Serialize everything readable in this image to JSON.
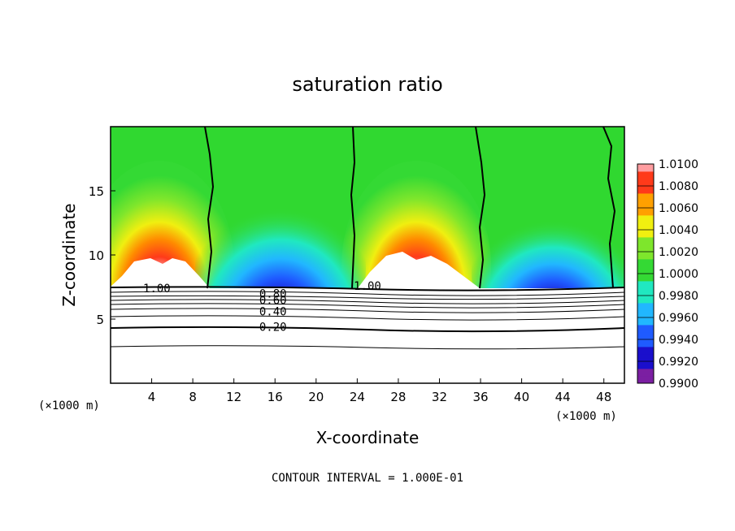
{
  "chart_data": {
    "type": "heatmap",
    "title": "saturation ratio",
    "xlabel": "X-coordinate",
    "ylabel": "Z-coordinate",
    "x_unit_left": "(×1000 m)",
    "x_unit_right": "(×1000 m)",
    "xlim": [
      0,
      50
    ],
    "ylim": [
      0,
      20
    ],
    "xticks": [
      4,
      8,
      12,
      16,
      20,
      24,
      28,
      32,
      36,
      40,
      44,
      48
    ],
    "yticks": [
      5,
      10,
      15
    ],
    "colorbar": {
      "levels": [
        "0.9900",
        "0.9920",
        "0.9940",
        "0.9960",
        "0.9980",
        "1.0000",
        "1.0020",
        "1.0040",
        "1.0060",
        "1.0080",
        "1.0100"
      ],
      "colors": [
        "#7b1fa2",
        "#1a0fcc",
        "#1f5bff",
        "#21b7ff",
        "#20e8c0",
        "#34d934",
        "#7ee62c",
        "#f0ef10",
        "#ffa000",
        "#ff3a1a",
        "#ff9da0"
      ]
    },
    "contour_labels": [
      {
        "text": "1.00",
        "x": 4.5,
        "z": 7.4
      },
      {
        "text": "1.00",
        "x": 25.0,
        "z": 7.6
      },
      {
        "text": "0.80",
        "x": 15.8,
        "z": 7.0
      },
      {
        "text": "0.60",
        "x": 15.8,
        "z": 6.5
      },
      {
        "text": "0.40",
        "x": 15.8,
        "z": 5.6
      },
      {
        "text": "0.20",
        "x": 15.8,
        "z": 4.4
      }
    ],
    "contour_interval_text": "CONTOUR INTERVAL = 1.000E-01"
  }
}
